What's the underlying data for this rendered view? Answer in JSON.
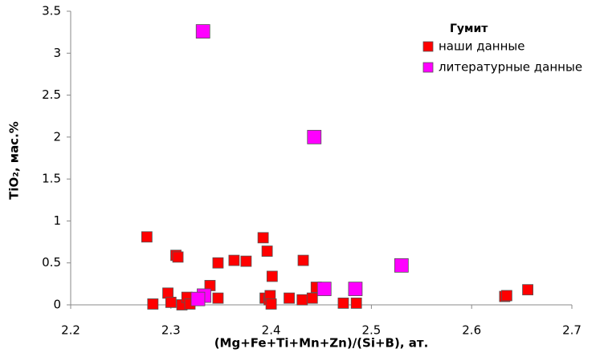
{
  "chart_data": {
    "type": "scatter",
    "xlabel": "(Mg+Fe+Ti+Mn+Zn)/(Si+B), ат.",
    "ylabel": "TiO₂, мас.%",
    "legend_title": "Гумит",
    "legend": "upper right",
    "xlim": [
      2.2,
      2.7
    ],
    "xticks": [
      2.2,
      2.3,
      2.4,
      2.5,
      2.6,
      2.7
    ],
    "ylim": [
      0,
      3.5
    ],
    "yticks": [
      0,
      0.5,
      1,
      1.5,
      2,
      2.5,
      3,
      3.5
    ],
    "series": [
      {
        "name": "наши данные",
        "color": "#ff0000",
        "x": [
          2.276,
          2.282,
          2.297,
          2.3,
          2.305,
          2.307,
          2.311,
          2.316,
          2.319,
          2.339,
          2.347,
          2.347,
          2.363,
          2.375,
          2.392,
          2.396,
          2.394,
          2.398,
          2.399,
          2.4,
          2.401,
          2.418,
          2.431,
          2.432,
          2.441,
          2.445,
          2.472,
          2.485,
          2.633,
          2.635,
          2.656
        ],
        "values": [
          0.81,
          0.01,
          0.14,
          0.03,
          0.59,
          0.57,
          0.0,
          0.09,
          0.01,
          0.23,
          0.5,
          0.08,
          0.53,
          0.52,
          0.8,
          0.64,
          0.08,
          0.06,
          0.11,
          0.01,
          0.34,
          0.08,
          0.06,
          0.53,
          0.08,
          0.21,
          0.02,
          0.02,
          0.1,
          0.11,
          0.18
        ]
      },
      {
        "name": "литературные данные",
        "color": "#ff00ff",
        "x": [
          2.332,
          2.443,
          2.53,
          2.484,
          2.453,
          2.333,
          2.327
        ],
        "values": [
          3.26,
          2.0,
          0.47,
          0.19,
          0.19,
          0.11,
          0.07
        ]
      }
    ]
  }
}
